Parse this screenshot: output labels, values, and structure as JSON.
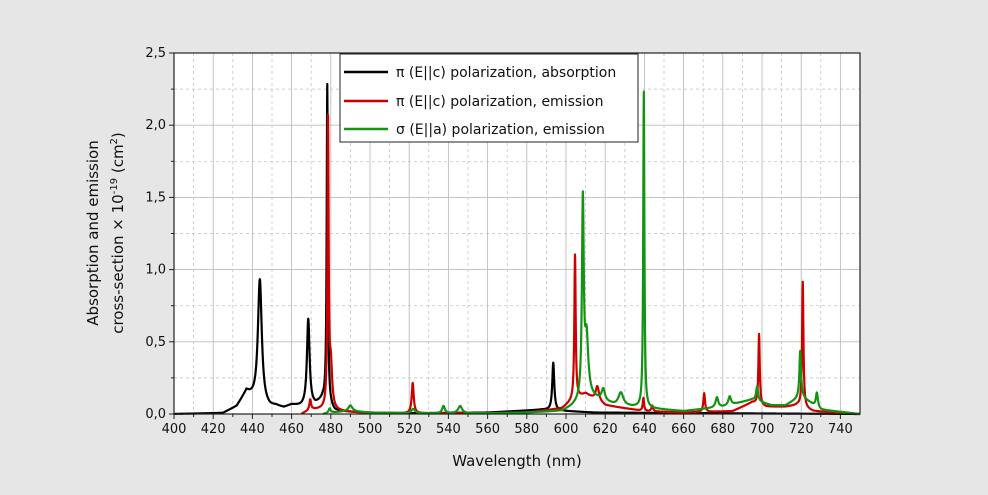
{
  "colors": {
    "background": "#e6e6e6",
    "plot_bg": "#ffffff",
    "black_series": "#000000",
    "red_series": "#cc0000",
    "green_series": "#129412",
    "grid": "#bdbdbd"
  },
  "chart_data": {
    "type": "line",
    "xlabel": "Wavelength (nm)",
    "ylabel_line1": "Absorption and emission",
    "ylabel_line2": "cross-section × 10",
    "ylabel_exp": "-19",
    "ylabel_unit": " (cm",
    "ylabel_unit_exp": "2",
    "ylabel_close": ")",
    "xlim": [
      400,
      750
    ],
    "ylim": [
      0,
      2.5
    ],
    "x_ticks": [
      "400",
      "420",
      "440",
      "460",
      "480",
      "500",
      "520",
      "540",
      "560",
      "580",
      "600",
      "620",
      "640",
      "660",
      "680",
      "700",
      "720",
      "740"
    ],
    "y_ticks": [
      "0,0",
      "0,5",
      "1,0",
      "1,5",
      "2,0",
      "2,5"
    ],
    "grid": true,
    "legend_position": "top",
    "series": [
      {
        "name": "π (E||c) polarization, absorption",
        "color": "#000000",
        "baseline": [
          [
            400,
            0
          ],
          [
            425,
            0.005
          ],
          [
            432,
            0.05
          ],
          [
            437,
            0.15
          ],
          [
            444,
            0.05
          ],
          [
            449,
            0.04
          ],
          [
            452,
            0.05
          ],
          [
            456,
            0.04
          ],
          [
            460,
            0.06
          ],
          [
            465,
            0.05
          ],
          [
            472,
            0.06
          ],
          [
            476,
            0.1
          ],
          [
            482,
            0.02
          ],
          [
            495,
            0.01
          ],
          [
            520,
            0.005
          ],
          [
            560,
            0.01
          ],
          [
            588,
            0.03
          ],
          [
            600,
            0.02
          ],
          [
            615,
            0.01
          ],
          [
            750,
            0
          ]
        ],
        "peaks": [
          [
            443.8,
            0.88,
            1.2
          ],
          [
            468.5,
            0.6,
            0.8
          ],
          [
            478.2,
            2.21,
            0.35
          ],
          [
            593.5,
            0.33,
            0.6
          ]
        ]
      },
      {
        "name": "π (E||c) polarization, emission",
        "color": "#cc0000",
        "baseline": [
          [
            465,
            0
          ],
          [
            470,
            0.03
          ],
          [
            476,
            0.03
          ],
          [
            484,
            0.02
          ],
          [
            495,
            0.01
          ],
          [
            520,
            0.005
          ],
          [
            560,
            0.005
          ],
          [
            580,
            0.01
          ],
          [
            598,
            0.04
          ],
          [
            604,
            0.1
          ],
          [
            610,
            0.14
          ],
          [
            620,
            0.06
          ],
          [
            640,
            0.02
          ],
          [
            660,
            0.01
          ],
          [
            685,
            0.02
          ],
          [
            695,
            0.08
          ],
          [
            702,
            0.05
          ],
          [
            712,
            0.05
          ],
          [
            718,
            0.06
          ],
          [
            726,
            0.02
          ],
          [
            750,
            0
          ]
        ],
        "peaks": [
          [
            469.5,
            0.07,
            0.5
          ],
          [
            478.6,
            1.97,
            0.35
          ],
          [
            480,
            0.3,
            0.8
          ],
          [
            521.8,
            0.21,
            0.6
          ],
          [
            604.6,
            1.0,
            0.4
          ],
          [
            616,
            0.1,
            1.0
          ],
          [
            639.5,
            0.09,
            0.4
          ],
          [
            644,
            0.04,
            0.5
          ],
          [
            670.5,
            0.13,
            0.5
          ],
          [
            698.5,
            0.49,
            0.4
          ],
          [
            720.8,
            0.87,
            0.4
          ]
        ]
      },
      {
        "name": "σ (E||a) polarization, emission",
        "color": "#129412",
        "baseline": [
          [
            476,
            0
          ],
          [
            480,
            0.01
          ],
          [
            490,
            0.02
          ],
          [
            500,
            0.01
          ],
          [
            520,
            0.005
          ],
          [
            560,
            0.005
          ],
          [
            580,
            0.01
          ],
          [
            598,
            0.02
          ],
          [
            603,
            0.05
          ],
          [
            612,
            0.12
          ],
          [
            625,
            0.06
          ],
          [
            640,
            0.04
          ],
          [
            660,
            0.02
          ],
          [
            680,
            0.05
          ],
          [
            695,
            0.1
          ],
          [
            705,
            0.06
          ],
          [
            712,
            0.06
          ],
          [
            720,
            0.12
          ],
          [
            730,
            0.03
          ],
          [
            750,
            0
          ]
        ],
        "peaks": [
          [
            479.4,
            0.03,
            0.6
          ],
          [
            490,
            0.04,
            1.2
          ],
          [
            522,
            0.03,
            1.2
          ],
          [
            537.5,
            0.05,
            0.8
          ],
          [
            546,
            0.05,
            1.2
          ],
          [
            608.6,
            1.36,
            0.55
          ],
          [
            610.5,
            0.4,
            1.0
          ],
          [
            619,
            0.08,
            1.0
          ],
          [
            628,
            0.09,
            1.5
          ],
          [
            639.7,
            2.19,
            0.35
          ],
          [
            677,
            0.07,
            0.8
          ],
          [
            683.5,
            0.06,
            0.8
          ],
          [
            697.5,
            0.1,
            0.6
          ],
          [
            719.5,
            0.32,
            0.5
          ],
          [
            728,
            0.1,
            0.6
          ]
        ]
      }
    ]
  }
}
